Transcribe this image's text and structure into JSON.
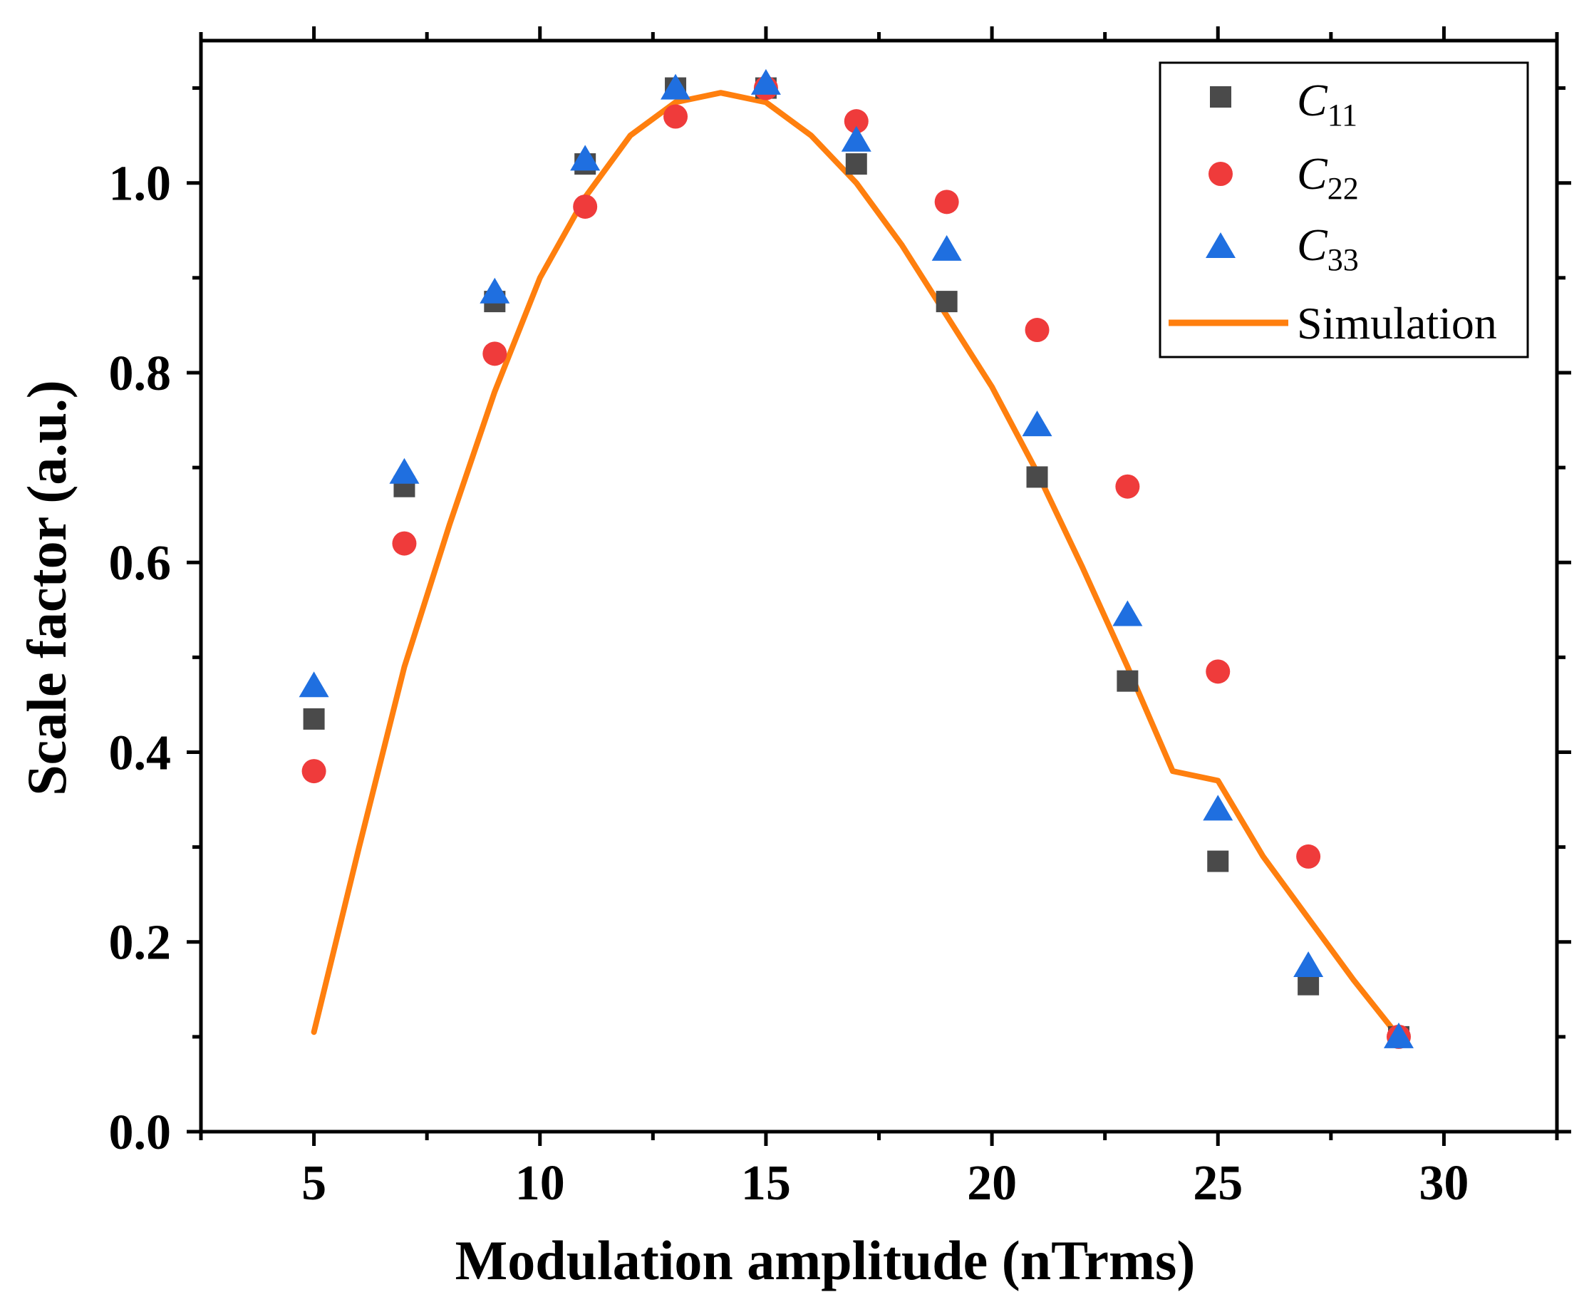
{
  "chart_data": {
    "type": "scatter",
    "title": "",
    "xlabel": "Modulation amplitude (nTrms)",
    "ylabel": "Scale factor (a.u.)",
    "xlim": [
      2.5,
      32.5
    ],
    "ylim": [
      0.0,
      1.15
    ],
    "x_ticks": [
      5,
      10,
      15,
      20,
      25,
      30
    ],
    "x_tick_labels": [
      "5",
      "10",
      "15",
      "20",
      "25",
      "30"
    ],
    "y_ticks": [
      0.0,
      0.2,
      0.4,
      0.6,
      0.8,
      1.0
    ],
    "y_tick_labels": [
      "0.0",
      "0.2",
      "0.4",
      "0.6",
      "0.8",
      "1.0"
    ],
    "grid": false,
    "legend_position": "top-right",
    "x": [
      5,
      7,
      9,
      11,
      13,
      15,
      17,
      19,
      21,
      23,
      25,
      27,
      29
    ],
    "series": [
      {
        "name": "C11",
        "label_main": "C",
        "label_sub": "11",
        "marker": "square",
        "color": "#4a4a4a",
        "values": [
          0.435,
          0.68,
          0.875,
          1.02,
          1.1,
          1.1,
          1.02,
          0.875,
          0.69,
          0.475,
          0.285,
          0.155,
          0.1
        ]
      },
      {
        "name": "C22",
        "label_main": "C",
        "label_sub": "22",
        "marker": "circle",
        "color": "#ef3b3b",
        "values": [
          0.38,
          0.62,
          0.82,
          0.975,
          1.07,
          1.1,
          1.065,
          0.98,
          0.845,
          0.68,
          0.485,
          0.29,
          0.1
        ]
      },
      {
        "name": "C33",
        "label_main": "C",
        "label_sub": "33",
        "marker": "triangle",
        "color": "#1f6fe0",
        "values": [
          0.47,
          0.695,
          0.885,
          1.025,
          1.1,
          1.105,
          1.045,
          0.93,
          0.745,
          0.545,
          0.34,
          0.175,
          0.1
        ]
      },
      {
        "name": "Simulation",
        "marker": "line",
        "color": "#ff7f0e",
        "x": [
          5,
          6,
          7,
          8,
          9,
          10,
          11,
          12,
          13,
          14,
          15,
          16,
          17,
          18,
          19,
          20,
          21,
          22,
          23,
          24,
          25,
          26,
          27,
          28,
          29
        ],
        "values": [
          0.105,
          0.3,
          0.49,
          0.64,
          0.78,
          0.9,
          0.985,
          1.05,
          1.085,
          1.095,
          1.085,
          1.05,
          1.0,
          0.935,
          0.86,
          0.785,
          0.695,
          0.595,
          0.49,
          0.38,
          0.37,
          0.29,
          0.225,
          0.16,
          0.1
        ]
      }
    ]
  }
}
